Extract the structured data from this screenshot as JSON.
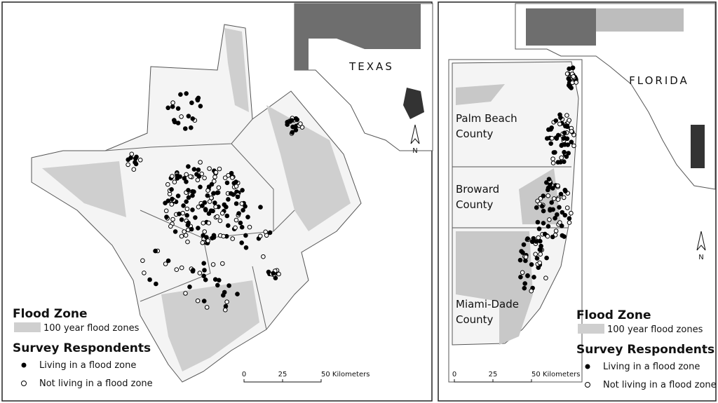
{
  "panels": [
    {
      "inset_label": "TEXAS",
      "north": "N",
      "legend": {
        "title": "Flood Zone",
        "flood": "100 year flood zones",
        "respondents_title": "Survey Respondents",
        "living": "Living in a flood zone",
        "not_living": "Not living in a flood zone"
      },
      "scale": [
        "0",
        "25",
        "50 Kilometers"
      ]
    },
    {
      "inset_label": "FLORIDA",
      "north": "N",
      "counties": [
        [
          "Palm Beach",
          "County"
        ],
        [
          "Broward",
          "County"
        ],
        [
          "Miami-Dade",
          "County"
        ]
      ],
      "legend": {
        "title": "Flood Zone",
        "flood": "100 year flood zones",
        "respondents_title": "Survey Respondents",
        "living": "Living in a flood zone",
        "not_living": "Not living in a flood zone"
      },
      "scale": [
        "0",
        "25",
        "50 Kilometers"
      ]
    }
  ]
}
